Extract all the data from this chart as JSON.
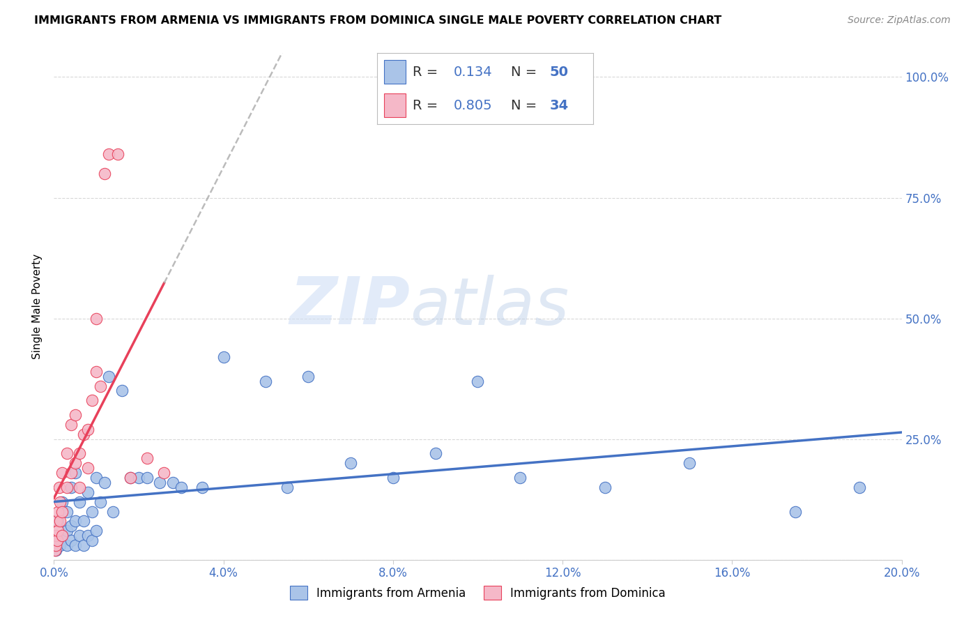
{
  "title": "IMMIGRANTS FROM ARMENIA VS IMMIGRANTS FROM DOMINICA SINGLE MALE POVERTY CORRELATION CHART",
  "source": "Source: ZipAtlas.com",
  "ylabel": "Single Male Poverty",
  "ytick_vals": [
    0.0,
    0.25,
    0.5,
    0.75,
    1.0
  ],
  "ytick_labels": [
    "",
    "25.0%",
    "50.0%",
    "75.0%",
    "100.0%"
  ],
  "xtick_vals": [
    0.0,
    0.04,
    0.08,
    0.12,
    0.16,
    0.2
  ],
  "xtick_labels": [
    "0.0%",
    "4.0%",
    "8.0%",
    "12.0%",
    "16.0%",
    "20.0%"
  ],
  "legend_armenia": "Immigrants from Armenia",
  "legend_dominica": "Immigrants from Dominica",
  "r_armenia": "0.134",
  "n_armenia": "50",
  "r_dominica": "0.805",
  "n_dominica": "34",
  "color_armenia": "#aac4e8",
  "color_dominica": "#f5b8c8",
  "line_color_armenia": "#4472c4",
  "line_color_dominica": "#e8405a",
  "watermark_zip": "ZIP",
  "watermark_atlas": "atlas",
  "background_color": "#ffffff",
  "grid_color": "#d8d8d8",
  "xlim": [
    0.0,
    0.2
  ],
  "ylim": [
    0.0,
    1.05
  ],
  "armenia_x": [
    0.0005,
    0.001,
    0.001,
    0.0015,
    0.002,
    0.002,
    0.003,
    0.003,
    0.003,
    0.004,
    0.004,
    0.004,
    0.005,
    0.005,
    0.005,
    0.006,
    0.006,
    0.007,
    0.007,
    0.008,
    0.008,
    0.009,
    0.009,
    0.01,
    0.01,
    0.011,
    0.012,
    0.013,
    0.014,
    0.016,
    0.018,
    0.02,
    0.022,
    0.025,
    0.028,
    0.03,
    0.035,
    0.04,
    0.05,
    0.055,
    0.06,
    0.07,
    0.08,
    0.09,
    0.1,
    0.11,
    0.13,
    0.15,
    0.175,
    0.19
  ],
  "armenia_y": [
    0.02,
    0.08,
    0.04,
    0.03,
    0.12,
    0.05,
    0.1,
    0.03,
    0.06,
    0.15,
    0.07,
    0.04,
    0.18,
    0.08,
    0.03,
    0.12,
    0.05,
    0.08,
    0.03,
    0.14,
    0.05,
    0.1,
    0.04,
    0.17,
    0.06,
    0.12,
    0.16,
    0.38,
    0.1,
    0.35,
    0.17,
    0.17,
    0.17,
    0.16,
    0.16,
    0.15,
    0.15,
    0.42,
    0.37,
    0.15,
    0.38,
    0.2,
    0.17,
    0.22,
    0.37,
    0.17,
    0.15,
    0.2,
    0.1,
    0.15
  ],
  "dominica_x": [
    0.0002,
    0.0004,
    0.0005,
    0.0006,
    0.0008,
    0.001,
    0.001,
    0.0012,
    0.0014,
    0.0015,
    0.002,
    0.002,
    0.002,
    0.003,
    0.003,
    0.004,
    0.004,
    0.005,
    0.005,
    0.006,
    0.006,
    0.007,
    0.008,
    0.008,
    0.009,
    0.01,
    0.01,
    0.011,
    0.012,
    0.013,
    0.015,
    0.018,
    0.022,
    0.026
  ],
  "dominica_y": [
    0.02,
    0.03,
    0.05,
    0.08,
    0.04,
    0.1,
    0.06,
    0.15,
    0.08,
    0.12,
    0.18,
    0.1,
    0.05,
    0.22,
    0.15,
    0.28,
    0.18,
    0.3,
    0.2,
    0.22,
    0.15,
    0.26,
    0.27,
    0.19,
    0.33,
    0.5,
    0.39,
    0.36,
    0.8,
    0.84,
    0.84,
    0.17,
    0.21,
    0.18
  ]
}
